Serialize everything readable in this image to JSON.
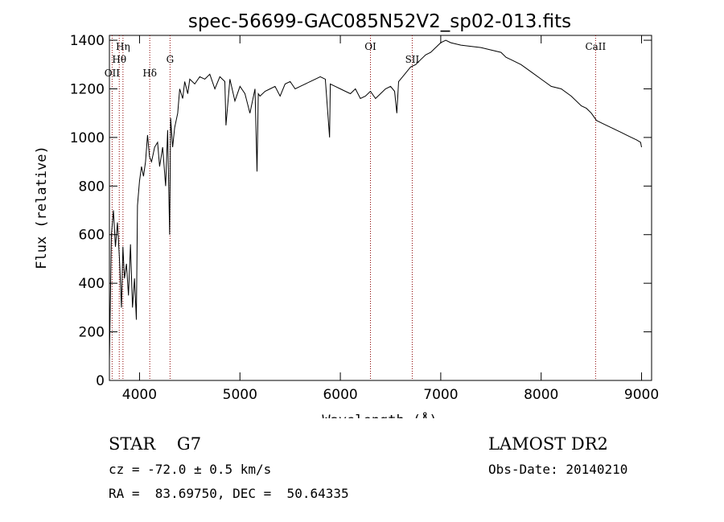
{
  "chart_data": {
    "type": "line",
    "title": "spec-56699-GAC085N52V2_sp02-013.fits",
    "xlabel": "Wavelength (Å)",
    "ylabel": "Flux (relative)",
    "xlim": [
      3700,
      9100
    ],
    "ylim": [
      0,
      1420
    ],
    "x_ticks": [
      4000,
      5000,
      6000,
      7000,
      8000,
      9000
    ],
    "y_ticks": [
      0,
      200,
      400,
      600,
      800,
      1000,
      1200,
      1400
    ],
    "grid": false,
    "series": [
      {
        "x": [
          3700,
          3720,
          3740,
          3760,
          3780,
          3800,
          3820,
          3835,
          3850,
          3870,
          3890,
          3910,
          3930,
          3950,
          3968,
          3980,
          4000,
          4020,
          4040,
          4060,
          4080,
          4100,
          4120,
          4150,
          4180,
          4200,
          4230,
          4260,
          4280,
          4300,
          4310,
          4330,
          4350,
          4380,
          4400,
          4430,
          4450,
          4480,
          4500,
          4550,
          4600,
          4650,
          4700,
          4750,
          4800,
          4850,
          4861,
          4900,
          4950,
          5000,
          5050,
          5100,
          5150,
          5170,
          5183,
          5200,
          5250,
          5300,
          5350,
          5400,
          5450,
          5500,
          5550,
          5600,
          5650,
          5700,
          5750,
          5800,
          5850,
          5893,
          5900,
          5950,
          6000,
          6050,
          6100,
          6150,
          6200,
          6250,
          6300,
          6350,
          6400,
          6450,
          6500,
          6540,
          6563,
          6580,
          6620,
          6660,
          6700,
          6750,
          6800,
          6850,
          6900,
          6950,
          7000,
          7050,
          7100,
          7150,
          7200,
          7300,
          7400,
          7500,
          7600,
          7650,
          7700,
          7800,
          7900,
          8000,
          8100,
          8200,
          8300,
          8400,
          8450,
          8500,
          8550,
          8600,
          8650,
          8700,
          8750,
          8800,
          8850,
          8900,
          8950,
          8990,
          9000
        ],
        "values": [
          80,
          600,
          700,
          550,
          650,
          500,
          300,
          550,
          420,
          480,
          350,
          560,
          300,
          420,
          250,
          720,
          820,
          880,
          840,
          900,
          1010,
          920,
          900,
          960,
          980,
          880,
          960,
          800,
          1030,
          600,
          1080,
          960,
          1040,
          1100,
          1200,
          1160,
          1230,
          1180,
          1240,
          1220,
          1250,
          1240,
          1260,
          1200,
          1250,
          1230,
          1050,
          1240,
          1150,
          1210,
          1180,
          1100,
          1200,
          860,
          1180,
          1170,
          1190,
          1200,
          1210,
          1170,
          1220,
          1230,
          1200,
          1210,
          1220,
          1230,
          1240,
          1250,
          1240,
          1000,
          1220,
          1210,
          1200,
          1190,
          1180,
          1200,
          1160,
          1170,
          1190,
          1160,
          1180,
          1200,
          1210,
          1190,
          1100,
          1230,
          1250,
          1270,
          1290,
          1300,
          1320,
          1340,
          1350,
          1370,
          1390,
          1400,
          1390,
          1385,
          1380,
          1375,
          1370,
          1360,
          1350,
          1330,
          1320,
          1300,
          1270,
          1240,
          1210,
          1200,
          1170,
          1130,
          1120,
          1100,
          1070,
          1060,
          1050,
          1040,
          1030,
          1020,
          1010,
          1000,
          990,
          980,
          960
        ]
      }
    ],
    "reference_lines": [
      {
        "label": "Hη",
        "wavelength": 3835
      },
      {
        "label": "Hθ",
        "wavelength": 3798
      },
      {
        "label": "OII",
        "wavelength": 3727
      },
      {
        "label": "Hδ",
        "wavelength": 4102
      },
      {
        "label": "G",
        "wavelength": 4304
      },
      {
        "label": "OI",
        "wavelength": 6300
      },
      {
        "label": "SII",
        "wavelength": 6716
      },
      {
        "label": "CaII",
        "wavelength": 8542
      }
    ]
  },
  "footer": {
    "object_type": "STAR    G7",
    "survey": "LAMOST DR2",
    "redshift": "cz = -72.0 ± 0.5 km/s",
    "obs_date": "Obs-Date: 20140210",
    "coords": "RA =  83.69750, DEC =  50.64335"
  },
  "colors": {
    "spectrum": "#000000",
    "reference_line": "#8b0000"
  }
}
